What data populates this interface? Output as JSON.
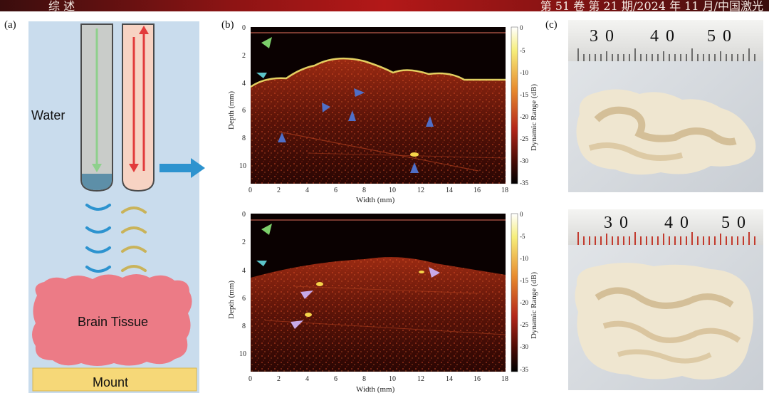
{
  "header": {
    "left_text": "综 述",
    "right_text": "第 51 卷 第 21 期/2024 年 11 月/中国激光"
  },
  "panels": {
    "a": {
      "label": "(a)",
      "water": "Water",
      "tissue": "Brain Tissue",
      "mount": "Mount"
    },
    "b": {
      "label": "(b)",
      "top": {
        "ylabel": "Depth (mm)",
        "xlabel": "Width (mm)",
        "cbar_label": "Dynamic Range (dB)"
      },
      "bottom": {
        "ylabel": "Depth (mm)",
        "xlabel": "Width (mm)",
        "cbar_label": "Dynamic Range (dB)"
      },
      "x_ticks": [
        "0",
        "2",
        "4",
        "6",
        "8",
        "10",
        "12",
        "14",
        "16",
        "18"
      ],
      "y_ticks": [
        "0",
        "2",
        "4",
        "6",
        "8",
        "10"
      ],
      "cbar_top_ticks": [
        "0",
        "-5",
        "-10",
        "-15",
        "-20",
        "-25",
        "-30",
        "-35"
      ],
      "cbar_bottom_ticks": [
        "0",
        "-5",
        "-10",
        "-15",
        "-20",
        "-25",
        "-30",
        "-35"
      ]
    },
    "c": {
      "label": "(c)",
      "ruler_top": [
        "3",
        "0",
        "4",
        "0",
        "5",
        "0"
      ],
      "ruler_bottom": [
        "3",
        "0",
        "4",
        "0",
        "5",
        "0"
      ]
    }
  },
  "colors": {
    "tube_fill": "#c9ccc9",
    "tube_red": "#f7d3c3",
    "arrow_green": "#8ed08c",
    "arrow_red": "#e23b3b",
    "arrow_blue": "#2d93cf",
    "tissue": "#ec7b86",
    "mount": "#f6d878",
    "panel_bg": "#c9dced",
    "marker_green": "#7ccf6a",
    "marker_cyan": "#5cc4c9",
    "marker_blue": "#4f6fc7",
    "marker_violet": "#c7a9e8"
  }
}
